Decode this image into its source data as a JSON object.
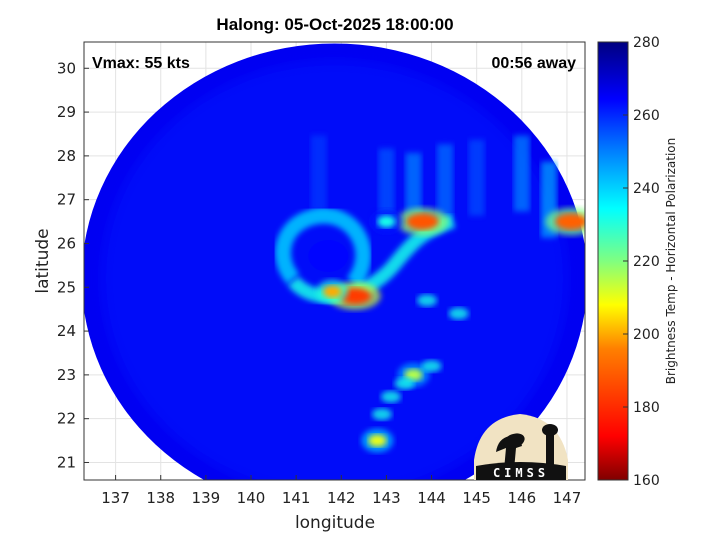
{
  "title": "Halong: 05-Oct-2025 18:00:00",
  "annotations": {
    "vmax": "Vmax: 55 kts",
    "time_away": "00:56 away"
  },
  "logo": {
    "text": "CIMSS"
  },
  "colors": {
    "colormap": [
      "#800000",
      "#ff0000",
      "#ff8000",
      "#ffff00",
      "#80ff80",
      "#00ffff",
      "#0080ff",
      "#0000ff",
      "#000080"
    ]
  },
  "chart_data": {
    "type": "heatmap",
    "title": "Halong: 05-Oct-2025 18:00:00",
    "xlabel": "longitude",
    "ylabel": "latitude",
    "xlim": [
      136.3,
      147.4
    ],
    "ylim": [
      20.6,
      30.6
    ],
    "xticks": [
      137,
      138,
      139,
      140,
      141,
      142,
      143,
      144,
      145,
      146,
      147
    ],
    "yticks": [
      21,
      22,
      23,
      24,
      25,
      26,
      27,
      28,
      29,
      30
    ],
    "grid": true,
    "colorbar": {
      "label": "Brightness Temp - Horizontal Polarization",
      "range": [
        160,
        280
      ],
      "ticks": [
        160,
        180,
        200,
        220,
        240,
        260,
        280
      ]
    },
    "swath": {
      "center_lon": 141.85,
      "center_lat": 25.2,
      "radius_deg": 5.6,
      "background_value": 266
    },
    "storm_center": {
      "lon": 141.6,
      "lat": 25.6
    },
    "features": [
      {
        "name": "eyewall band",
        "lon": 142.3,
        "lat": 24.8,
        "value": 183
      },
      {
        "name": "eyewall band",
        "lon": 141.8,
        "lat": 24.9,
        "value": 200
      },
      {
        "name": "spiral band",
        "lon": 143.8,
        "lat": 26.5,
        "value": 188
      },
      {
        "name": "spiral band",
        "lon": 143.0,
        "lat": 26.5,
        "value": 232
      },
      {
        "name": "rainband",
        "lon": 142.8,
        "lat": 21.5,
        "value": 210
      },
      {
        "name": "rainband",
        "lon": 143.6,
        "lat": 23.0,
        "value": 215
      },
      {
        "name": "convection",
        "lon": 147.1,
        "lat": 26.5,
        "value": 190
      }
    ]
  }
}
